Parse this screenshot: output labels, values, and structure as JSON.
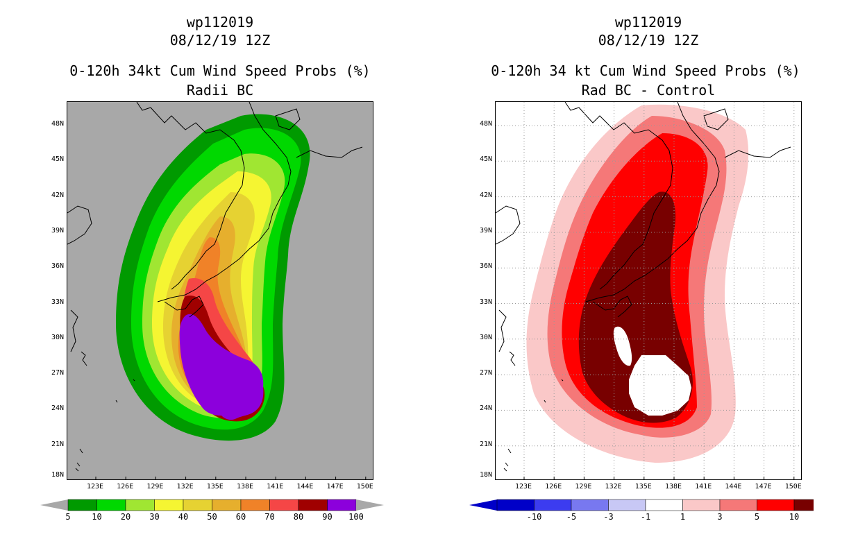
{
  "left": {
    "title_line1": "wp112019",
    "title_line2": "08/12/19 12Z",
    "title_line3": "0-120h 34kt Cum Wind Speed Probs (%)",
    "title_line4": "Radii BC",
    "background_color": "#a8a8a8",
    "colorbar": {
      "colors": [
        "#009a00",
        "#00d800",
        "#a0e632",
        "#f5f532",
        "#e6d232",
        "#e6af2d",
        "#f08228",
        "#f54646",
        "#a00000",
        "#8c00dc"
      ],
      "labels": [
        "5",
        "10",
        "20",
        "30",
        "40",
        "50",
        "60",
        "70",
        "80",
        "90",
        "100"
      ]
    }
  },
  "right": {
    "title_line1": "wp112019",
    "title_line2": "08/12/19 12Z",
    "title_line3": "0-120h 34 kt Cum Wind Speed Probs (%)",
    "title_line4": "Rad BC - Control",
    "background_color": "#ffffff",
    "colorbar": {
      "colors": [
        "#0000c8",
        "#3c3cf0",
        "#7878f0",
        "#c8c8f5",
        "#ffffff",
        "#fac8c8",
        "#f57878",
        "#ff0000",
        "#780000"
      ],
      "labels": [
        "-10",
        "-5",
        "-3",
        "-1",
        "1",
        "3",
        "5",
        "10"
      ]
    }
  },
  "axes": {
    "lat_labels": [
      "48N",
      "45N",
      "42N",
      "39N",
      "36N",
      "33N",
      "30N",
      "27N",
      "24N",
      "21N",
      "18N"
    ],
    "lon_labels": [
      "123E",
      "126E",
      "129E",
      "132E",
      "135E",
      "138E",
      "141E",
      "144E",
      "147E",
      "150E"
    ]
  }
}
